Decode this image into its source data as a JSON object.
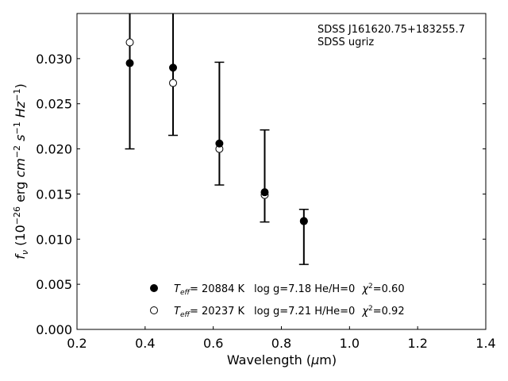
{
  "chart_data": {
    "type": "scatter",
    "title": "",
    "xlabel": "Wavelength (μm)",
    "ylabel": "f_ν (10^−26 erg cm^−2 s^−1 Hz^−1)",
    "xlim": [
      0.2,
      1.4
    ],
    "ylim": [
      0.0,
      0.035
    ],
    "xticks": [
      "0.2",
      "0.4",
      "0.6",
      "0.8",
      "1.0",
      "1.2",
      "1.4"
    ],
    "yticks": [
      "0.000",
      "0.005",
      "0.010",
      "0.015",
      "0.020",
      "0.025",
      "0.030"
    ],
    "annotation": [
      "SDSS J161620.75+183255.7",
      "SDSS ugriz"
    ],
    "series": [
      {
        "name": "T_eff= 20884 K  log g=7.18  He/H=0  χ²=0.60",
        "marker": "filled-circle",
        "x": [
          0.355,
          0.482,
          0.618,
          0.751,
          0.866
        ],
        "y": [
          0.0295,
          0.029,
          0.0206,
          0.0152,
          0.012
        ],
        "err_low": [
          0.02,
          0.0215,
          0.016,
          0.0119,
          0.0072
        ],
        "err_high": [
          0.0395,
          0.0365,
          0.0296,
          0.0221,
          0.0133
        ]
      },
      {
        "name": "T_eff= 20237 K  log g=7.21  H/He=0  χ²=0.92",
        "marker": "open-circle",
        "x": [
          0.355,
          0.482,
          0.618,
          0.751,
          0.866
        ],
        "y": [
          0.0318,
          0.0273,
          0.02,
          0.0149,
          0.012
        ]
      }
    ],
    "legend": {
      "position": "bottom-center",
      "entries": [
        {
          "teff": "= 20884 K",
          "rest": "log g=7.18  He/H=0",
          "chi": "=0.60",
          "marker": "filled-circle"
        },
        {
          "teff": "= 20237 K",
          "rest": "log g=7.21  H/He=0",
          "chi": "=0.92",
          "marker": "open-circle"
        }
      ]
    },
    "grid": false,
    "colors": {
      "marker": "#000000",
      "axes": "#000000",
      "background": "#ffffff"
    }
  }
}
